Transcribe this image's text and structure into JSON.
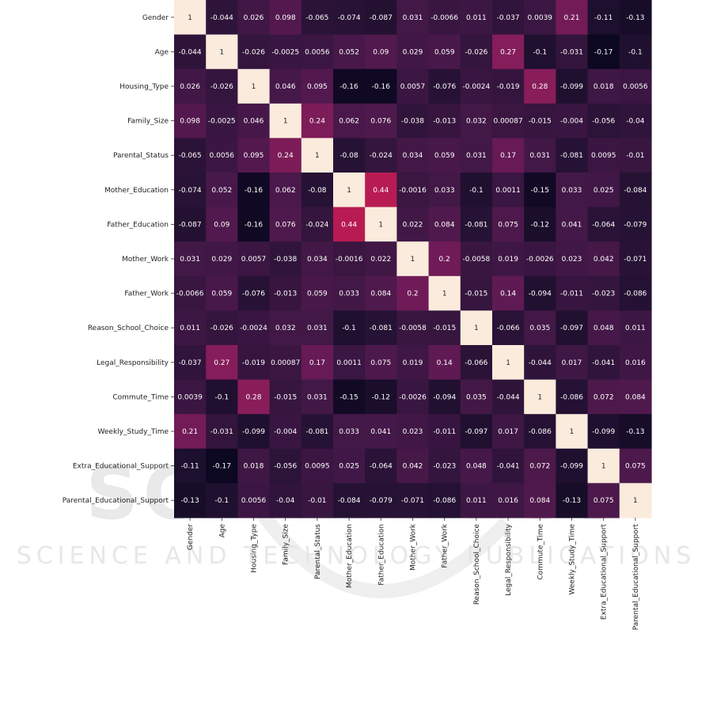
{
  "chart_data": {
    "type": "heatmap",
    "variables": [
      "Gender",
      "Age",
      "Housing_Type",
      "Family_Size",
      "Parental_Status",
      "Mother_Education",
      "Father_Education",
      "Mother_Work",
      "Father_Work",
      "Reason_School_Choice",
      "Legal_Responsibility",
      "Commute_Time",
      "Weekly_Study_Time",
      "Extra_Educational_Support",
      "Parental_Educational_Support"
    ],
    "matrix": [
      [
        1,
        -0.044,
        0.026,
        0.098,
        -0.065,
        -0.074,
        -0.087,
        0.031,
        -0.0066,
        0.011,
        -0.037,
        0.0039,
        0.21,
        -0.11,
        -0.13
      ],
      [
        -0.044,
        1,
        -0.026,
        -0.0025,
        0.0056,
        0.052,
        0.09,
        0.029,
        0.059,
        -0.026,
        0.27,
        -0.1,
        -0.031,
        -0.17,
        -0.1
      ],
      [
        0.026,
        -0.026,
        1,
        0.046,
        0.095,
        -0.16,
        -0.16,
        0.0057,
        -0.076,
        -0.0024,
        -0.019,
        0.28,
        -0.099,
        0.018,
        0.0056
      ],
      [
        0.098,
        -0.0025,
        0.046,
        1,
        0.24,
        0.062,
        0.076,
        -0.038,
        -0.013,
        0.032,
        0.00087,
        -0.015,
        -0.004,
        -0.056,
        -0.04
      ],
      [
        -0.065,
        0.0056,
        0.095,
        0.24,
        1,
        -0.08,
        -0.024,
        0.034,
        0.059,
        0.031,
        0.17,
        0.031,
        -0.081,
        0.0095,
        -0.01
      ],
      [
        -0.074,
        0.052,
        -0.16,
        0.062,
        -0.08,
        1,
        0.44,
        -0.0016,
        0.033,
        -0.1,
        0.0011,
        -0.15,
        0.033,
        0.025,
        -0.084
      ],
      [
        -0.087,
        0.09,
        -0.16,
        0.076,
        -0.024,
        0.44,
        1,
        0.022,
        0.084,
        -0.081,
        0.075,
        -0.12,
        0.041,
        -0.064,
        -0.079
      ],
      [
        0.031,
        0.029,
        0.0057,
        -0.038,
        0.034,
        -0.0016,
        0.022,
        1,
        0.2,
        -0.0058,
        0.019,
        -0.0026,
        0.023,
        0.042,
        -0.071
      ],
      [
        -0.0066,
        0.059,
        -0.076,
        -0.013,
        0.059,
        0.033,
        0.084,
        0.2,
        1,
        -0.015,
        0.14,
        -0.094,
        -0.011,
        -0.023,
        -0.086
      ],
      [
        0.011,
        -0.026,
        -0.0024,
        0.032,
        0.031,
        -0.1,
        -0.081,
        -0.0058,
        -0.015,
        1,
        -0.066,
        0.035,
        -0.097,
        0.048,
        0.011
      ],
      [
        -0.037,
        0.27,
        -0.019,
        0.00087,
        0.17,
        0.0011,
        0.075,
        0.019,
        0.14,
        -0.066,
        1,
        -0.044,
        0.017,
        -0.041,
        0.016
      ],
      [
        0.0039,
        -0.1,
        0.28,
        -0.015,
        0.031,
        -0.15,
        -0.12,
        -0.0026,
        -0.094,
        0.035,
        -0.044,
        1,
        -0.086,
        0.072,
        0.084
      ],
      [
        0.21,
        -0.031,
        -0.099,
        -0.004,
        -0.081,
        0.033,
        0.041,
        0.023,
        -0.011,
        -0.097,
        0.017,
        -0.086,
        1,
        -0.099,
        -0.13
      ],
      [
        -0.11,
        -0.17,
        0.018,
        -0.056,
        0.0095,
        0.025,
        -0.064,
        0.042,
        -0.023,
        0.048,
        -0.041,
        0.072,
        -0.099,
        1,
        0.075
      ],
      [
        -0.13,
        -0.1,
        0.0056,
        -0.04,
        -0.01,
        -0.084,
        -0.079,
        -0.071,
        -0.086,
        0.011,
        0.016,
        0.084,
        -0.13,
        0.075,
        1
      ]
    ],
    "value_range": [
      -0.2,
      1
    ],
    "colormap": "rocket",
    "annotations": true,
    "grid": false,
    "legend": "none"
  },
  "watermark": {
    "big": "SCITEPRESS",
    "sub": "SCIENCE AND TECHNOLOGY PUBLICATIONS"
  }
}
